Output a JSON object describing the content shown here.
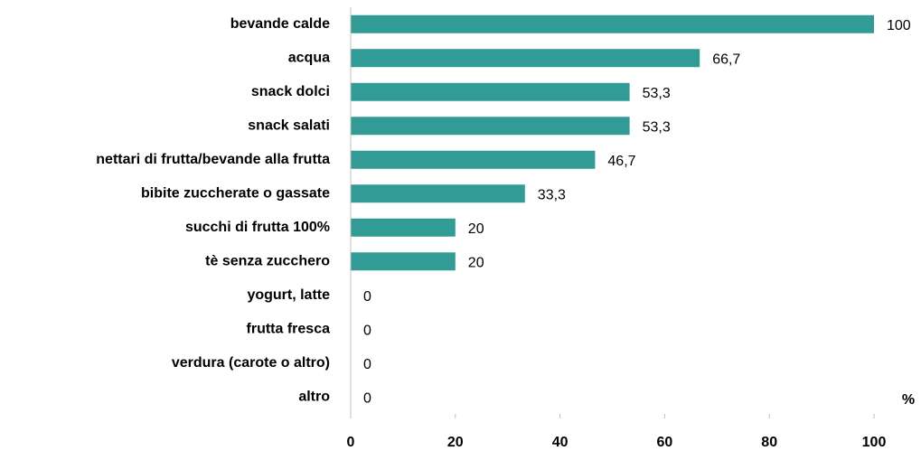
{
  "chart_data": {
    "type": "bar",
    "orientation": "horizontal",
    "categories": [
      "bevande calde",
      "acqua",
      "snack dolci",
      "snack salati",
      "nettari di frutta/bevande alla frutta",
      "bibite zuccherate o gassate",
      "succhi di frutta 100%",
      "tè senza zucchero",
      "yogurt, latte",
      "frutta fresca",
      "verdura (carote o altro)",
      "altro"
    ],
    "values": [
      100,
      66.7,
      53.3,
      53.3,
      46.7,
      33.3,
      20,
      20,
      0,
      0,
      0,
      0
    ],
    "value_labels": [
      "100",
      "66,7",
      "53,3",
      "53,3",
      "46,7",
      "33,3",
      "20",
      "20",
      "0",
      "0",
      "0",
      "0"
    ],
    "color": "#339b96",
    "xlim": [
      0,
      100
    ],
    "xticks": [
      0,
      20,
      40,
      60,
      80,
      100
    ],
    "x_axis_label": "%"
  }
}
